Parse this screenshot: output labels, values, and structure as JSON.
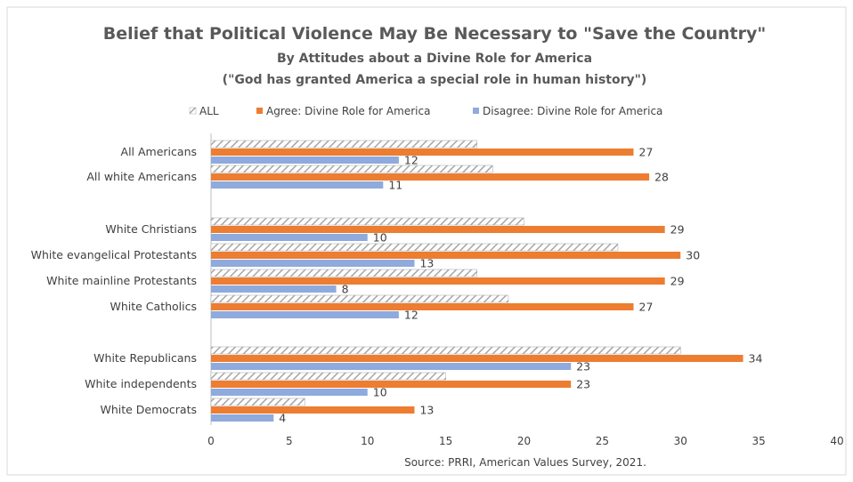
{
  "chart_data": {
    "type": "bar",
    "orientation": "horizontal",
    "title": "Belief that Political Violence May Be Necessary to \"Save the Country\"",
    "subtitle": "By Attitudes about a Divine Role for America",
    "subtitle2": "(\"God has granted America a special role in human history\")",
    "source": "Source: PRRI, American Values Survey, 2021.",
    "legend_position": "top",
    "grid": false,
    "xlim": [
      0,
      40
    ],
    "x_ticks": [
      0,
      5,
      10,
      15,
      20,
      25,
      30,
      35,
      40
    ],
    "categories": [
      "All Americans",
      "All white Americans",
      "White Christians",
      "White evangelical Protestants",
      "White mainline Protestants",
      "White Catholics",
      "White Republicans",
      "White independents",
      "White Democrats"
    ],
    "series": [
      {
        "name": "ALL",
        "color": "#bfbfbf",
        "pattern": "hatched",
        "values": [
          17,
          18,
          20,
          26,
          17,
          19,
          30,
          15,
          6
        ]
      },
      {
        "name": "Agree: Divine Role for America",
        "color": "#ed7d31",
        "pattern": "solid",
        "values": [
          27,
          28,
          29,
          30,
          29,
          27,
          34,
          23,
          13
        ]
      },
      {
        "name": "Disagree: Divine Role for America",
        "color": "#8faadc",
        "pattern": "solid",
        "values": [
          12,
          11,
          10,
          13,
          8,
          12,
          23,
          10,
          4
        ]
      }
    ],
    "labeled_series": [
      1,
      2
    ]
  }
}
